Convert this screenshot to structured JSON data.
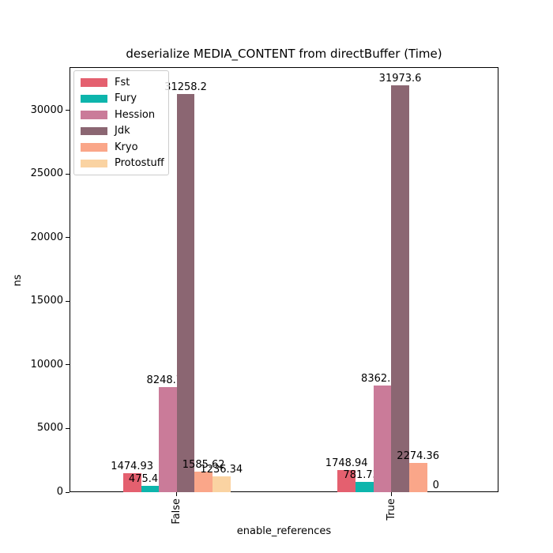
{
  "figure": {
    "background": "#ffffff",
    "text_color": "#000000",
    "spine_color": "#000000",
    "legend_border_color": "#cccccc"
  },
  "chart_data": {
    "type": "bar",
    "title": "deserialize MEDIA_CONTENT from directBuffer (Time)",
    "xlabel": "enable_references",
    "ylabel": "ns",
    "categories": [
      "False",
      "True"
    ],
    "series": [
      {
        "name": "Fst",
        "color": "#e4606f",
        "values": [
          1474.93,
          1748.94
        ],
        "value_labels": [
          "1474.93",
          "1748.94"
        ]
      },
      {
        "name": "Fury",
        "color": "#0db5ac",
        "values": [
          475.415,
          781.732
        ],
        "value_labels": [
          "475.415",
          "781.732"
        ]
      },
      {
        "name": "Hession",
        "color": "#ca7b99",
        "values": [
          8248.78,
          8362.97
        ],
        "value_labels": [
          "8248.78",
          "8362.97"
        ]
      },
      {
        "name": "Jdk",
        "color": "#8b6672",
        "values": [
          31258.2,
          31973.6
        ],
        "value_labels": [
          "31258.2",
          "31973.6"
        ]
      },
      {
        "name": "Kryo",
        "color": "#faa689",
        "values": [
          1585.62,
          2274.36
        ],
        "value_labels": [
          "1585.62",
          "2274.36"
        ]
      },
      {
        "name": "Protostuff",
        "color": "#fad3a2",
        "values": [
          1236.34,
          0
        ],
        "value_labels": [
          "1236.34",
          "0"
        ]
      }
    ],
    "yticks": [
      0,
      5000,
      10000,
      15000,
      20000,
      25000,
      30000
    ],
    "ylim": [
      0,
      33400
    ],
    "legend_position": "upper left",
    "grid": false
  }
}
